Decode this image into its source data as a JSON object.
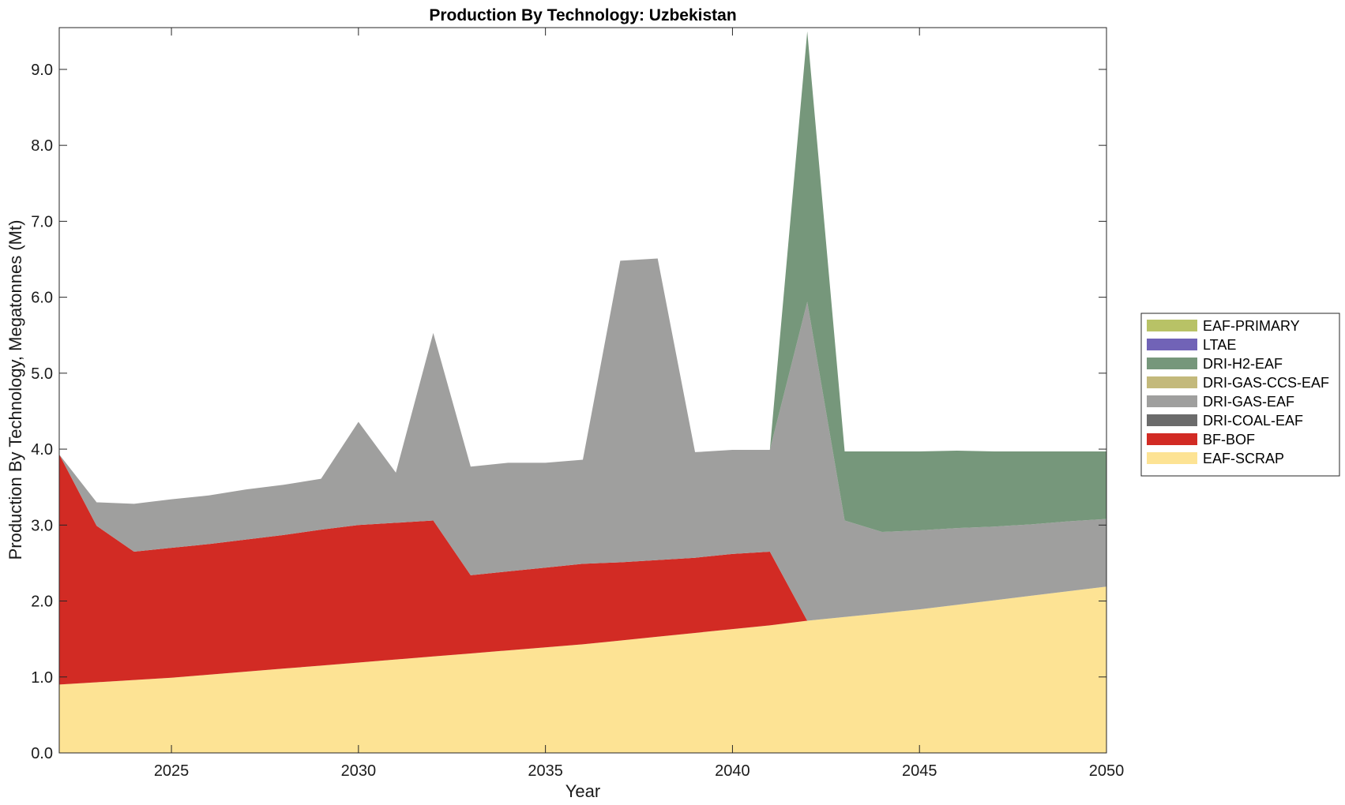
{
  "chart_data": {
    "type": "area",
    "stacked": true,
    "title": "Production By Technology: Uzbekistan",
    "xlabel": "Year",
    "ylabel": "Production By Technology, Megatonnes (Mt)",
    "xlim": [
      2022,
      2050
    ],
    "ylim": [
      0,
      9.55
    ],
    "xticks": [
      2025,
      2030,
      2035,
      2040,
      2045,
      2050
    ],
    "yticks": [
      0,
      1,
      2,
      3,
      4,
      5,
      6,
      7,
      8,
      9
    ],
    "ytick_labels": [
      "0.0",
      "1.0",
      "2.0",
      "3.0",
      "4.0",
      "5.0",
      "6.0",
      "7.0",
      "8.0",
      "9.0"
    ],
    "grid": false,
    "legend_position": "right",
    "x": [
      2022,
      2023,
      2024,
      2025,
      2026,
      2027,
      2028,
      2029,
      2030,
      2031,
      2032,
      2033,
      2034,
      2035,
      2036,
      2037,
      2038,
      2039,
      2040,
      2041,
      2042,
      2043,
      2044,
      2045,
      2046,
      2047,
      2048,
      2049,
      2050
    ],
    "series": [
      {
        "name": "EAF-SCRAP",
        "color": "#fde394",
        "values": [
          0.9,
          0.93,
          0.96,
          0.99,
          1.03,
          1.07,
          1.11,
          1.15,
          1.19,
          1.23,
          1.27,
          1.31,
          1.35,
          1.39,
          1.43,
          1.48,
          1.53,
          1.58,
          1.63,
          1.68,
          1.74,
          1.79,
          1.84,
          1.89,
          1.95,
          2.01,
          2.07,
          2.13,
          2.19
        ]
      },
      {
        "name": "BF-BOF",
        "color": "#d22b24",
        "values": [
          3.03,
          2.06,
          1.69,
          1.71,
          1.72,
          1.74,
          1.76,
          1.79,
          1.81,
          1.8,
          1.79,
          1.03,
          1.04,
          1.05,
          1.06,
          1.03,
          1.01,
          0.99,
          0.99,
          0.97,
          0,
          0,
          0,
          0,
          0,
          0,
          0,
          0,
          0
        ]
      },
      {
        "name": "DRI-COAL-EAF",
        "color": "#6b6b6b",
        "values": [
          0,
          0,
          0,
          0,
          0,
          0,
          0,
          0,
          0,
          0,
          0,
          0,
          0,
          0,
          0,
          0,
          0,
          0,
          0,
          0,
          0,
          0,
          0,
          0,
          0,
          0,
          0,
          0,
          0
        ]
      },
      {
        "name": "DRI-GAS-EAF",
        "color": "#9f9f9e",
        "values": [
          0,
          0.31,
          0.63,
          0.64,
          0.64,
          0.66,
          0.66,
          0.67,
          1.36,
          0.66,
          2.47,
          1.43,
          1.43,
          1.38,
          1.37,
          3.97,
          3.97,
          1.39,
          1.37,
          1.34,
          4.2,
          1.27,
          1.07,
          1.04,
          1.01,
          0.97,
          0.94,
          0.92,
          0.89
        ]
      },
      {
        "name": "DRI-GAS-CCS-EAF",
        "color": "#c3b97b",
        "values": [
          0,
          0,
          0,
          0,
          0,
          0,
          0,
          0,
          0,
          0,
          0,
          0,
          0,
          0,
          0,
          0,
          0,
          0,
          0,
          0,
          0,
          0,
          0,
          0,
          0,
          0,
          0,
          0,
          0
        ]
      },
      {
        "name": "DRI-H2-EAF",
        "color": "#76977b",
        "values": [
          0,
          0,
          0,
          0,
          0,
          0,
          0,
          0,
          0,
          0,
          0,
          0,
          0,
          0,
          0,
          0,
          0,
          0,
          0,
          0,
          3.56,
          0.91,
          1.06,
          1.04,
          1.02,
          0.99,
          0.96,
          0.92,
          0.89
        ]
      },
      {
        "name": "LTAE",
        "color": "#7163b7",
        "values": [
          0,
          0,
          0,
          0,
          0,
          0,
          0,
          0,
          0,
          0,
          0,
          0,
          0,
          0,
          0,
          0,
          0,
          0,
          0,
          0,
          0,
          0,
          0,
          0,
          0,
          0,
          0,
          0,
          0
        ]
      },
      {
        "name": "EAF-PRIMARY",
        "color": "#b8c266",
        "values": [
          0,
          0,
          0,
          0,
          0,
          0,
          0,
          0,
          0,
          0,
          0,
          0,
          0,
          0,
          0,
          0,
          0,
          0,
          0,
          0,
          0,
          0,
          0,
          0,
          0,
          0,
          0,
          0,
          0
        ]
      }
    ],
    "legend_order": [
      "EAF-PRIMARY",
      "LTAE",
      "DRI-H2-EAF",
      "DRI-GAS-CCS-EAF",
      "DRI-GAS-EAF",
      "DRI-COAL-EAF",
      "BF-BOF",
      "EAF-SCRAP"
    ]
  }
}
